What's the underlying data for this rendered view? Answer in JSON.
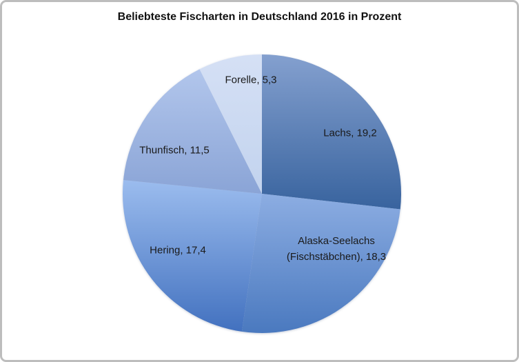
{
  "chart_data": {
    "type": "pie",
    "title": "Beliebteste Fischarten in Deutschland 2016 in Prozent",
    "legend_position": "none",
    "start_angle_deg": 0,
    "direction": "clockwise",
    "value_total": 71.7,
    "slices": [
      {
        "label": "Lachs",
        "value": 19.2,
        "display_lines": [
          "Lachs, 19,2"
        ],
        "color_top": "#84a0cf",
        "color_bottom": "#38639e"
      },
      {
        "label": "Alaska-Seelachs (Fischstäbchen)",
        "value": 18.3,
        "display_lines": [
          "Alaska-Seelachs",
          "(Fischstäbchen), 18,3"
        ],
        "color_top": "#8cade2",
        "color_bottom": "#4a79bf"
      },
      {
        "label": "Hering",
        "value": 17.4,
        "display_lines": [
          "Hering, 17,4"
        ],
        "color_top": "#9bbcee",
        "color_bottom": "#4271bf"
      },
      {
        "label": "Thunfisch",
        "value": 11.5,
        "display_lines": [
          "Thunfisch, 11,5"
        ],
        "color_top": "#b2c6ec",
        "color_bottom": "#8aa4d6"
      },
      {
        "label": "Forelle",
        "value": 5.3,
        "display_lines": [
          "Forelle, 5,3"
        ],
        "color_top": "#d5e0f5",
        "color_bottom": "#c2d3ee"
      }
    ],
    "label_text_color": "#1a1a1a",
    "frame_border_color": "#bdbdbd",
    "background_color": "#ffffff"
  }
}
